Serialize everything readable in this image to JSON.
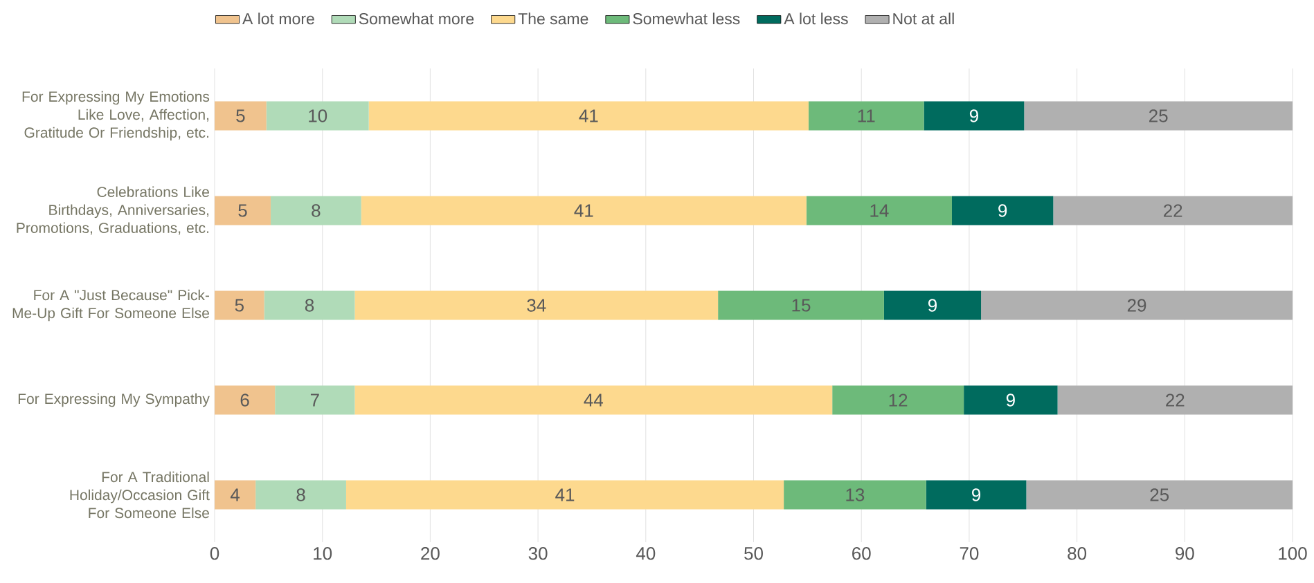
{
  "chart_data": {
    "type": "bar",
    "orientation": "horizontal",
    "stacked": true,
    "categories": [
      "For Expressing My Emotions Like Love, Affection, Gratitude Or Friendship, etc.",
      "Celebrations Like Birthdays, Anniversaries, Promotions, Graduations, etc.",
      "For A \"Just Because\" Pick-Me-Up Gift For Someone Else",
      "For Expressing My Sympathy",
      "For A Traditional Holiday/Occasion Gift For Someone Else"
    ],
    "series": [
      {
        "name": "A lot more",
        "color": "#f0c38e",
        "values": [
          4.8,
          5.2,
          4.6,
          5.6,
          3.8
        ],
        "value_labels": [
          "5",
          "5",
          "5",
          "6",
          "4"
        ]
      },
      {
        "name": "Somewhat more",
        "color": "#b0dbb8",
        "values": [
          9.5,
          8.4,
          8.4,
          7.4,
          8.4
        ],
        "value_labels": [
          "10",
          "8",
          "8",
          "7",
          "8"
        ]
      },
      {
        "name": "The same",
        "color": "#fdd98e",
        "values": [
          40.8,
          41.3,
          33.7,
          44.3,
          40.6
        ],
        "value_labels": [
          "41",
          "41",
          "34",
          "44",
          "41"
        ]
      },
      {
        "name": "Somewhat less",
        "color": "#6dba7a",
        "values": [
          10.7,
          13.5,
          15.4,
          12.2,
          13.2
        ],
        "value_labels": [
          "11",
          "14",
          "15",
          "12",
          "13"
        ]
      },
      {
        "name": "A lot less",
        "color": "#006b5e",
        "values": [
          9.3,
          9.4,
          9.0,
          8.7,
          9.3
        ],
        "value_labels": [
          "9",
          "9",
          "9",
          "9",
          "9"
        ]
      },
      {
        "name": "Not at all",
        "color": "#b0b0b0",
        "values": [
          24.9,
          22.2,
          28.9,
          21.8,
          24.7
        ],
        "value_labels": [
          "25",
          "22",
          "29",
          "22",
          "25"
        ]
      }
    ],
    "xlim": [
      0,
      100
    ],
    "xticks": [
      0,
      10,
      20,
      30,
      40,
      50,
      60,
      70,
      80,
      90,
      100
    ],
    "grid": "x",
    "legend": "top"
  }
}
